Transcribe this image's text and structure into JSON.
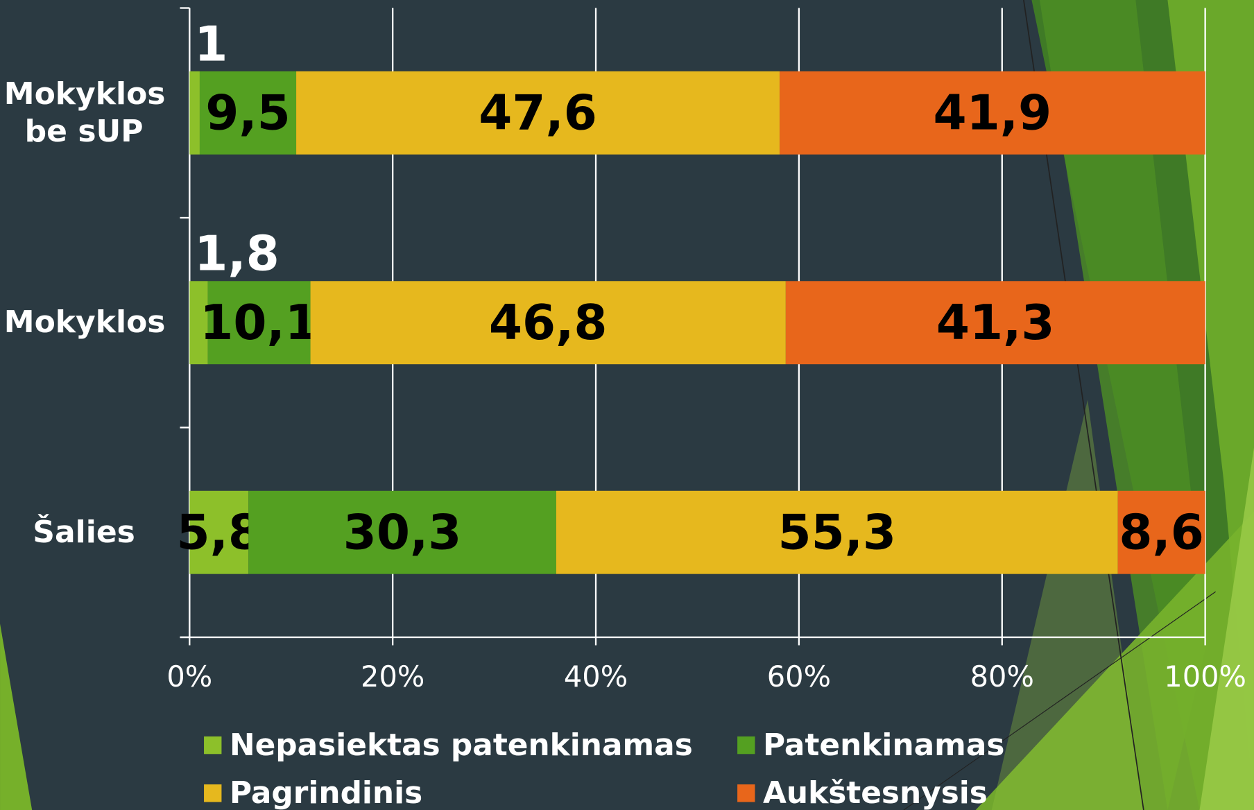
{
  "chart_data": {
    "type": "stacked_bar_horizontal",
    "categories": [
      "Mokyklos be sUP",
      "Mokyklos",
      "Šalies"
    ],
    "series": [
      {
        "name": "Nepasiektas patenkinamas",
        "color": "#8dc02a",
        "values": [
          1,
          1.8,
          5.8
        ],
        "value_labels": [
          "1",
          "1,8",
          "5,8"
        ]
      },
      {
        "name": "Patenkinamas",
        "color": "#54a021",
        "values": [
          9.5,
          10.1,
          30.3
        ],
        "value_labels": [
          "9,5",
          "10,1",
          "30,3"
        ]
      },
      {
        "name": "Pagrindinis",
        "color": "#e6b81e",
        "values": [
          47.6,
          46.8,
          55.3
        ],
        "value_labels": [
          "47,6",
          "46,8",
          "55,3"
        ]
      },
      {
        "name": "Aukštesnysis",
        "color": "#e8661b",
        "values": [
          41.9,
          41.3,
          8.6
        ],
        "value_labels": [
          "41,9",
          "41,3",
          "8,6"
        ]
      }
    ],
    "xlim": [
      0,
      100
    ],
    "xticks": [
      {
        "value": 0,
        "label": "0%"
      },
      {
        "value": 20,
        "label": "20%"
      },
      {
        "value": 40,
        "label": "40%"
      },
      {
        "value": 60,
        "label": "60%"
      },
      {
        "value": 80,
        "label": "80%"
      },
      {
        "value": 100,
        "label": "100%"
      }
    ],
    "grid": true
  }
}
